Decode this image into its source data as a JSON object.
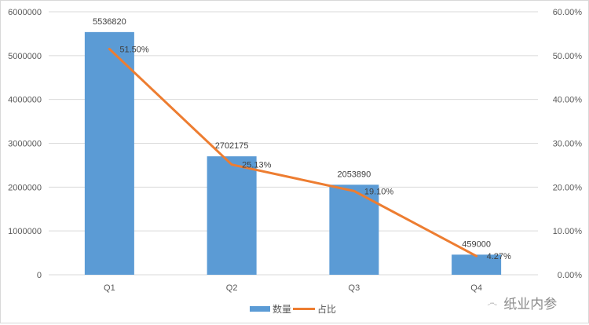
{
  "chart_data": {
    "type": "bar+line",
    "title": "",
    "categories": [
      "Q1",
      "Q2",
      "Q3",
      "Q4"
    ],
    "series": [
      {
        "name": "数量",
        "type": "bar",
        "axis": "left",
        "color": "#5b9bd5",
        "values": [
          5536820,
          2702175,
          2053890,
          459000
        ],
        "labels": [
          "5536820",
          "2702175",
          "2053890",
          "459000"
        ]
      },
      {
        "name": "占比",
        "type": "line",
        "axis": "right",
        "color": "#ed7d31",
        "values": [
          51.5,
          25.13,
          19.1,
          4.27
        ],
        "labels": [
          "51.50%",
          "25.13%",
          "19.10%",
          "4.27%"
        ]
      }
    ],
    "y_left": {
      "min": 0,
      "max": 6000000,
      "ticks": [
        "0",
        "1000000",
        "2000000",
        "3000000",
        "4000000",
        "5000000",
        "6000000"
      ]
    },
    "y_right": {
      "min": 0,
      "max": 60,
      "ticks": [
        "0.00%",
        "10.00%",
        "20.00%",
        "30.00%",
        "40.00%",
        "50.00%",
        "60.00%"
      ]
    },
    "xlabel": "",
    "ylabel": "",
    "grid": true,
    "legend_position": "bottom"
  },
  "legend": {
    "bar_label": "数量",
    "line_label": "占比"
  },
  "watermark": {
    "text": "纸业内参",
    "icon": "wechat-icon"
  }
}
